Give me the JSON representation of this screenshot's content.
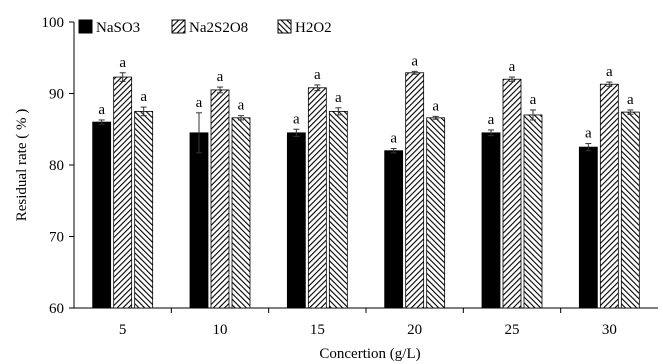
{
  "chart_data": {
    "type": "bar",
    "title": "",
    "xlabel": "Concertion (g/L)",
    "ylabel": "Residual rate ( % )",
    "ylim": [
      60,
      100
    ],
    "yticks": [
      60,
      70,
      80,
      90,
      100
    ],
    "categories": [
      "5",
      "10",
      "15",
      "20",
      "25",
      "30"
    ],
    "legend_position": "top-left",
    "grid": false,
    "series": [
      {
        "name": "NaSO3",
        "fill": "solid",
        "color": "#000000",
        "values": [
          86.0,
          84.5,
          84.5,
          82.0,
          84.5,
          82.5
        ],
        "errors": [
          0.3,
          2.8,
          0.5,
          0.3,
          0.4,
          0.5
        ],
        "labels": [
          "a",
          "a",
          "a",
          "a",
          "a",
          "a"
        ]
      },
      {
        "name": "Na2S2O8",
        "fill": "forward-hatch",
        "color": "#000000",
        "values": [
          92.3,
          90.5,
          90.8,
          92.9,
          92.0,
          91.3
        ],
        "errors": [
          0.6,
          0.4,
          0.4,
          0.2,
          0.3,
          0.3
        ],
        "labels": [
          "a",
          "a",
          "a",
          "a",
          "a",
          "a"
        ]
      },
      {
        "name": "H2O2",
        "fill": "back-hatch",
        "color": "#000000",
        "values": [
          87.5,
          86.6,
          87.5,
          86.6,
          87.0,
          87.4
        ],
        "errors": [
          0.6,
          0.3,
          0.5,
          0.2,
          0.7,
          0.3
        ],
        "labels": [
          "a",
          "a",
          "a",
          "a",
          "a",
          "a"
        ]
      }
    ]
  }
}
